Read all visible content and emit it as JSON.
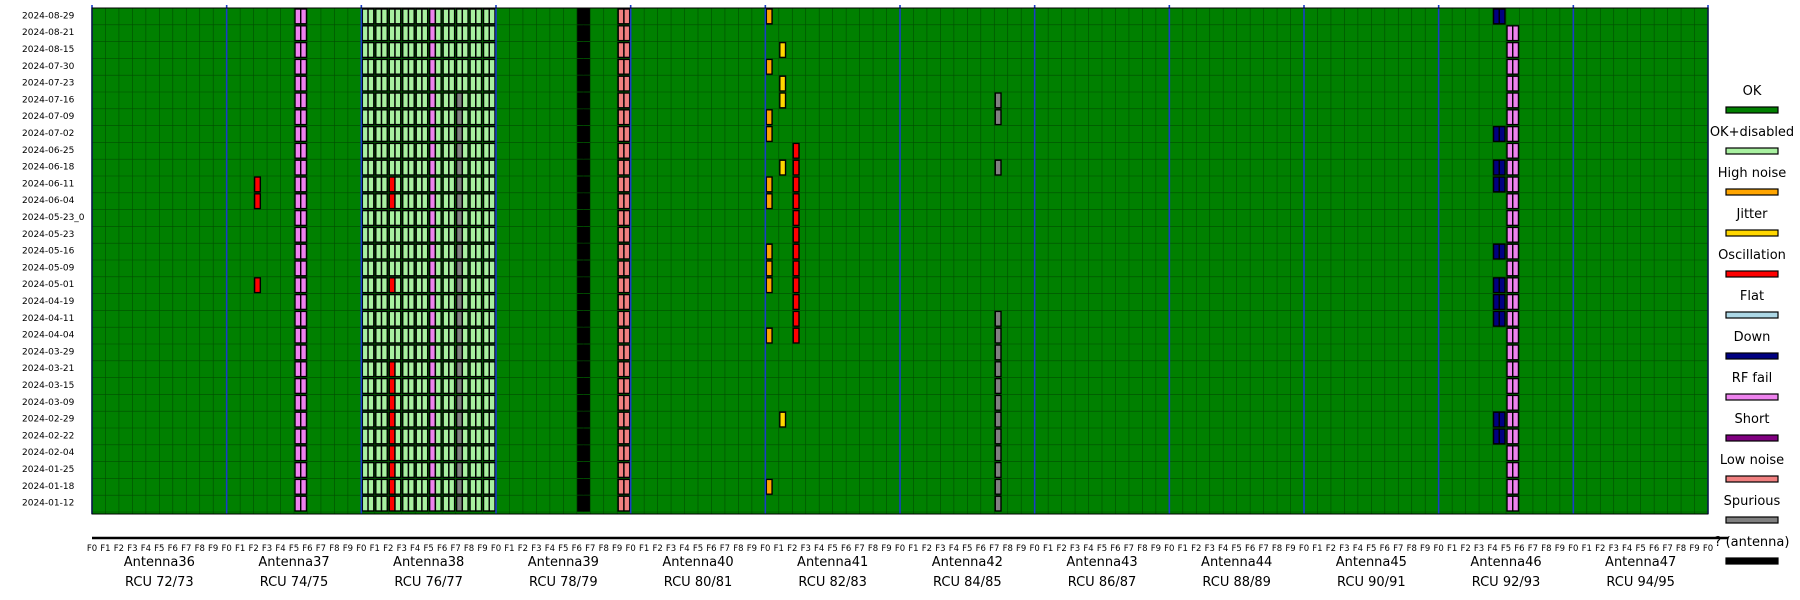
{
  "chart_data": {
    "type": "heatmap",
    "title": "",
    "xlabel": "",
    "ylabel": "",
    "dates": [
      "2024-08-29",
      "2024-08-21",
      "2024-08-15",
      "2024-07-30",
      "2024-07-23",
      "2024-07-16",
      "2024-07-09",
      "2024-07-02",
      "2024-06-25",
      "2024-06-18",
      "2024-06-11",
      "2024-06-04",
      "2024-05-23_0",
      "2024-05-23",
      "2024-05-16",
      "2024-05-09",
      "2024-05-01",
      "2024-04-19",
      "2024-04-11",
      "2024-04-04",
      "2024-03-29",
      "2024-03-21",
      "2024-03-15",
      "2024-03-09",
      "2024-02-29",
      "2024-02-22",
      "2024-02-04",
      "2024-01-25",
      "2024-01-18",
      "2024-01-12"
    ],
    "freq_labels": [
      "F0",
      "F1",
      "F2",
      "F3",
      "F4",
      "F5",
      "F6",
      "F7",
      "F8",
      "F9"
    ],
    "antennas": [
      {
        "name": "Antenna36",
        "rcu": "RCU 72/73"
      },
      {
        "name": "Antenna37",
        "rcu": "RCU 74/75"
      },
      {
        "name": "Antenna38",
        "rcu": "RCU 76/77"
      },
      {
        "name": "Antenna39",
        "rcu": "RCU 78/79"
      },
      {
        "name": "Antenna40",
        "rcu": "RCU 80/81"
      },
      {
        "name": "Antenna41",
        "rcu": "RCU 82/83"
      },
      {
        "name": "Antenna42",
        "rcu": "RCU 84/85"
      },
      {
        "name": "Antenna43",
        "rcu": "RCU 86/87"
      },
      {
        "name": "Antenna44",
        "rcu": "RCU 88/89"
      },
      {
        "name": "Antenna45",
        "rcu": "RCU 90/91"
      },
      {
        "name": "Antenna46",
        "rcu": "RCU 92/93"
      },
      {
        "name": "Antenna47",
        "rcu": "RCU 94/95"
      }
    ],
    "legend": [
      {
        "label": "OK",
        "color": "#008000"
      },
      {
        "label": "OK+disabled",
        "color": "#a8f0a0"
      },
      {
        "label": "High noise",
        "color": "#ffa500"
      },
      {
        "label": "Jitter",
        "color": "#ffd700"
      },
      {
        "label": "Oscillation",
        "color": "#ff0000"
      },
      {
        "label": "Flat",
        "color": "#add8e6"
      },
      {
        "label": "Down",
        "color": "#000080"
      },
      {
        "label": "RF fail",
        "color": "#ee82ee"
      },
      {
        "label": "Short",
        "color": "#800080"
      },
      {
        "label": "Low noise",
        "color": "#f08080"
      },
      {
        "label": "Spurious",
        "color": "#808080"
      },
      {
        "label": "? (antenna)",
        "color": "#000000"
      }
    ],
    "ok_color": "#008000",
    "disabled_freqs": {
      "antenna": "Antenna38",
      "freqs": [
        0,
        1,
        2,
        3,
        4,
        5,
        6,
        7,
        8,
        9
      ]
    },
    "anomalies": [
      {
        "antenna": "Antenna37",
        "freq": 5,
        "rows": "0-29",
        "state": "RF fail",
        "half": "both"
      },
      {
        "antenna": "Antenna38",
        "freq": 5,
        "rows": "0-29",
        "state": "RF fail",
        "half": "left"
      },
      {
        "antenna": "Antenna38",
        "freq": 7,
        "rows": "5-29",
        "state": "Spurious",
        "half": "left"
      },
      {
        "antenna": "Antenna39",
        "freq": 6,
        "rows": "0-29",
        "state": "? (antenna)",
        "half": "both"
      },
      {
        "antenna": "Antenna39",
        "freq": 9,
        "rows": "0-29",
        "state": "Low noise",
        "half": "both"
      },
      {
        "antenna": "Antenna46",
        "freq": 5,
        "rows": "1-29",
        "state": "RF fail",
        "half": "both"
      },
      {
        "antenna": "Antenna46",
        "freq": 4,
        "rows": "0,7,9,10,14,16,17,18,24,25",
        "state": "Down",
        "half": "both"
      },
      {
        "antenna": "Antenna41",
        "freq": 2,
        "rows": "8-19",
        "state": "Oscillation",
        "half": "left"
      },
      {
        "antenna": "Antenna41",
        "freq": 0,
        "rows": "0,3,6,7,10,11,14,15,16,19,28",
        "state": "High noise",
        "half": "left"
      },
      {
        "antenna": "Antenna41",
        "freq": 1,
        "rows": "2,4,5,9,24",
        "state": "Jitter",
        "half": "left"
      },
      {
        "antenna": "Antenna42",
        "freq": 7,
        "rows": "5-6,9,18-29",
        "state": "Spurious",
        "half": "left"
      },
      {
        "antenna": "Antenna37",
        "freq": 2,
        "rows": "10-11,16",
        "state": "Oscillation",
        "half": "left"
      },
      {
        "antenna": "Antenna38",
        "freq": 2,
        "rows": "10-11,16,21-29",
        "state": "Oscillation",
        "half": "left"
      }
    ]
  }
}
